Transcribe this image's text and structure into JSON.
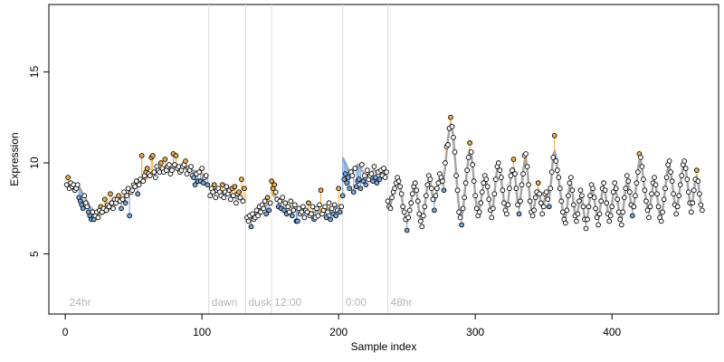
{
  "chart_data": {
    "type": "scatter",
    "xlabel": "Sample index",
    "ylabel": "Expression",
    "xlim": [
      -12,
      478
    ],
    "ylim": [
      1.7,
      18.7
    ],
    "x_ticks": [
      0,
      100,
      200,
      300,
      400
    ],
    "y_ticks": [
      5,
      10,
      15
    ],
    "grid": false,
    "colors": {
      "fit_line": "#a6a6a6",
      "residual_above": "#f4a425",
      "residual_below": "#6f9fd8",
      "point_above": "#f5b04c",
      "point_below": "#7ba7dc",
      "point_neutral": "#333333",
      "marker_line": "#dcdcdc",
      "marker_text": "#b5b5b5"
    },
    "markers": [
      {
        "x": 1,
        "label": "24hr"
      },
      {
        "x": 105,
        "label": "dawn"
      },
      {
        "x": 132,
        "label": "dusk"
      },
      {
        "x": 151,
        "label": "12:00"
      },
      {
        "x": 203,
        "label": "0:00"
      },
      {
        "x": 236,
        "label": "48hr"
      }
    ],
    "segments": [
      {
        "from": 1,
        "to": 104,
        "fit": [
          [
            1,
            8.8
          ],
          [
            10,
            8.7
          ],
          [
            18,
            7.6
          ],
          [
            24,
            7.1
          ],
          [
            30,
            7.3
          ],
          [
            40,
            7.9
          ],
          [
            50,
            8.6
          ],
          [
            60,
            9.2
          ],
          [
            70,
            9.6
          ],
          [
            80,
            9.8
          ],
          [
            90,
            9.7
          ],
          [
            100,
            9.4
          ],
          [
            104,
            9.2
          ]
        ]
      },
      {
        "from": 105,
        "to": 131,
        "fit": [
          [
            105,
            8.3
          ],
          [
            112,
            8.5
          ],
          [
            118,
            8.4
          ],
          [
            124,
            8.1
          ],
          [
            131,
            7.9
          ]
        ]
      },
      {
        "from": 132,
        "to": 150,
        "fit": [
          [
            132,
            7.2
          ],
          [
            136,
            7.0
          ],
          [
            140,
            7.3
          ],
          [
            145,
            7.6
          ],
          [
            150,
            7.8
          ]
        ]
      },
      {
        "from": 151,
        "to": 202,
        "fit": [
          [
            151,
            8.3
          ],
          [
            160,
            7.8
          ],
          [
            170,
            7.4
          ],
          [
            180,
            7.3
          ],
          [
            190,
            7.4
          ],
          [
            202,
            7.7
          ]
        ]
      },
      {
        "from": 203,
        "to": 235,
        "fit": [
          [
            203,
            10.3
          ],
          [
            208,
            9.5
          ],
          [
            214,
            9.9
          ],
          [
            220,
            9.3
          ],
          [
            226,
            9.6
          ],
          [
            235,
            9.4
          ]
        ]
      },
      {
        "from": 236,
        "to": 466,
        "fit": "oscillating"
      }
    ],
    "points_note": "Sample values 0–466; y range approx 6.3–12.5"
  },
  "points": [
    [
      1,
      8.8
    ],
    [
      2,
      9.2
    ],
    [
      3,
      8.6
    ],
    [
      4,
      8.9
    ],
    [
      5,
      8.7
    ],
    [
      6,
      8.8
    ],
    [
      7,
      8.5
    ],
    [
      8,
      8.6
    ],
    [
      9,
      8.8
    ],
    [
      10,
      8.1
    ],
    [
      11,
      7.9
    ],
    [
      12,
      7.7
    ],
    [
      13,
      7.5
    ],
    [
      14,
      8.2
    ],
    [
      15,
      7.8
    ],
    [
      16,
      7.6
    ],
    [
      17,
      7.3
    ],
    [
      18,
      7.1
    ],
    [
      19,
      6.9
    ],
    [
      20,
      7.3
    ],
    [
      21,
      6.9
    ],
    [
      22,
      7.1
    ],
    [
      23,
      7.3
    ],
    [
      24,
      7.0
    ],
    [
      25,
      7.4
    ],
    [
      26,
      7.6
    ],
    [
      27,
      7.3
    ],
    [
      28,
      7.5
    ],
    [
      29,
      8.0
    ],
    [
      30,
      7.4
    ],
    [
      31,
      7.7
    ],
    [
      32,
      7.6
    ],
    [
      33,
      8.3
    ],
    [
      34,
      7.8
    ],
    [
      35,
      7.5
    ],
    [
      36,
      8.0
    ],
    [
      37,
      7.8
    ],
    [
      38,
      8.0
    ],
    [
      39,
      8.2
    ],
    [
      40,
      7.9
    ],
    [
      41,
      7.5
    ],
    [
      42,
      8.0
    ],
    [
      43,
      8.4
    ],
    [
      44,
      7.8
    ],
    [
      45,
      8.2
    ],
    [
      46,
      8.6
    ],
    [
      47,
      7.1
    ],
    [
      48,
      8.4
    ],
    [
      49,
      8.5
    ],
    [
      50,
      8.8
    ],
    [
      51,
      8.7
    ],
    [
      52,
      9.0
    ],
    [
      53,
      8.3
    ],
    [
      54,
      8.8
    ],
    [
      55,
      9.1
    ],
    [
      56,
      10.4
    ],
    [
      57,
      9.0
    ],
    [
      58,
      9.3
    ],
    [
      59,
      9.5
    ],
    [
      60,
      9.7
    ],
    [
      61,
      9.4
    ],
    [
      62,
      9.3
    ],
    [
      63,
      10.3
    ],
    [
      64,
      10.4
    ],
    [
      65,
      9.5
    ],
    [
      66,
      9.2
    ],
    [
      67,
      9.8
    ],
    [
      68,
      9.6
    ],
    [
      69,
      9.5
    ],
    [
      70,
      10.0
    ],
    [
      71,
      9.7
    ],
    [
      72,
      9.5
    ],
    [
      73,
      10.2
    ],
    [
      74,
      9.6
    ],
    [
      75,
      9.8
    ],
    [
      76,
      9.9
    ],
    [
      77,
      9.4
    ],
    [
      78,
      9.6
    ],
    [
      79,
      10.5
    ],
    [
      80,
      9.9
    ],
    [
      81,
      10.4
    ],
    [
      82,
      9.7
    ],
    [
      83,
      9.8
    ],
    [
      84,
      9.5
    ],
    [
      85,
      9.6
    ],
    [
      86,
      9.8
    ],
    [
      87,
      9.9
    ],
    [
      88,
      10.1
    ],
    [
      89,
      9.4
    ],
    [
      90,
      9.7
    ],
    [
      91,
      9.6
    ],
    [
      92,
      9.8
    ],
    [
      93,
      9.3
    ],
    [
      94,
      9.2
    ],
    [
      95,
      8.8
    ],
    [
      96,
      9.4
    ],
    [
      97,
      9.0
    ],
    [
      98,
      9.5
    ],
    [
      99,
      9.0
    ],
    [
      100,
      9.7
    ],
    [
      101,
      8.9
    ],
    [
      102,
      9.2
    ],
    [
      103,
      9.3
    ],
    [
      104,
      8.8
    ],
    [
      106,
      8.2
    ],
    [
      107,
      8.6
    ],
    [
      108,
      8.4
    ],
    [
      109,
      8.8
    ],
    [
      110,
      8.1
    ],
    [
      111,
      8.5
    ],
    [
      112,
      8.6
    ],
    [
      113,
      8.4
    ],
    [
      114,
      8.2
    ],
    [
      115,
      8.8
    ],
    [
      116,
      8.1
    ],
    [
      117,
      8.4
    ],
    [
      118,
      8.7
    ],
    [
      119,
      8.3
    ],
    [
      120,
      8.5
    ],
    [
      121,
      8.0
    ],
    [
      122,
      8.6
    ],
    [
      123,
      8.2
    ],
    [
      124,
      8.7
    ],
    [
      125,
      7.8
    ],
    [
      126,
      8.3
    ],
    [
      127,
      8.4
    ],
    [
      128,
      8.1
    ],
    [
      129,
      9.1
    ],
    [
      130,
      7.9
    ],
    [
      131,
      8.6
    ],
    [
      133,
      7.0
    ],
    [
      134,
      6.8
    ],
    [
      135,
      7.1
    ],
    [
      136,
      6.5
    ],
    [
      137,
      7.2
    ],
    [
      138,
      6.9
    ],
    [
      139,
      7.0
    ],
    [
      140,
      7.4
    ],
    [
      141,
      7.1
    ],
    [
      142,
      7.6
    ],
    [
      143,
      7.3
    ],
    [
      144,
      7.7
    ],
    [
      145,
      7.5
    ],
    [
      146,
      7.9
    ],
    [
      147,
      7.2
    ],
    [
      148,
      8.1
    ],
    [
      149,
      7.4
    ],
    [
      150,
      7.8
    ],
    [
      151,
      9.0
    ],
    [
      152,
      8.6
    ],
    [
      153,
      8.8
    ],
    [
      154,
      8.4
    ],
    [
      155,
      8.0
    ],
    [
      156,
      7.6
    ],
    [
      157,
      7.9
    ],
    [
      158,
      7.5
    ],
    [
      159,
      8.1
    ],
    [
      160,
      7.4
    ],
    [
      161,
      7.8
    ],
    [
      162,
      7.2
    ],
    [
      163,
      7.6
    ],
    [
      164,
      7.3
    ],
    [
      165,
      7.9
    ],
    [
      166,
      7.1
    ],
    [
      167,
      7.4
    ],
    [
      168,
      7.7
    ],
    [
      169,
      6.8
    ],
    [
      170,
      6.8
    ],
    [
      171,
      7.5
    ],
    [
      172,
      7.2
    ],
    [
      173,
      7.3
    ],
    [
      174,
      7.6
    ],
    [
      175,
      7.0
    ],
    [
      176,
      7.4
    ],
    [
      177,
      7.3
    ],
    [
      178,
      7.8
    ],
    [
      179,
      7.1
    ],
    [
      180,
      7.2
    ],
    [
      181,
      7.6
    ],
    [
      182,
      6.9
    ],
    [
      183,
      7.0
    ],
    [
      184,
      7.5
    ],
    [
      185,
      7.1
    ],
    [
      186,
      7.7
    ],
    [
      187,
      8.5
    ],
    [
      188,
      7.2
    ],
    [
      189,
      7.4
    ],
    [
      190,
      7.6
    ],
    [
      191,
      7.0
    ],
    [
      192,
      7.3
    ],
    [
      193,
      7.8
    ],
    [
      194,
      6.9
    ],
    [
      195,
      7.5
    ],
    [
      196,
      7.2
    ],
    [
      197,
      7.7
    ],
    [
      198,
      7.1
    ],
    [
      199,
      7.4
    ],
    [
      200,
      8.6
    ],
    [
      201,
      7.3
    ],
    [
      202,
      7.6
    ],
    [
      203,
      8.2
    ],
    [
      204,
      9.1
    ],
    [
      205,
      9.4
    ],
    [
      206,
      8.9
    ],
    [
      207,
      9.2
    ],
    [
      208,
      8.6
    ],
    [
      209,
      9.5
    ],
    [
      210,
      9.3
    ],
    [
      211,
      8.4
    ],
    [
      212,
      9.7
    ],
    [
      213,
      8.7
    ],
    [
      214,
      9.0
    ],
    [
      215,
      9.1
    ],
    [
      216,
      8.6
    ],
    [
      217,
      9.9
    ],
    [
      218,
      9.0
    ],
    [
      219,
      9.3
    ],
    [
      220,
      8.8
    ],
    [
      221,
      9.6
    ],
    [
      222,
      9.1
    ],
    [
      223,
      9.3
    ],
    [
      224,
      9.4
    ],
    [
      225,
      9.0
    ],
    [
      226,
      9.8
    ],
    [
      227,
      9.2
    ],
    [
      228,
      8.9
    ],
    [
      229,
      9.5
    ],
    [
      230,
      9.1
    ],
    [
      231,
      9.6
    ],
    [
      232,
      9.3
    ],
    [
      233,
      9.7
    ],
    [
      234,
      9.2
    ],
    [
      235,
      9.5
    ],
    [
      236,
      7.9
    ],
    [
      237,
      7.6
    ],
    [
      238,
      7.5
    ],
    [
      239,
      8.1
    ],
    [
      240,
      8.4
    ],
    [
      241,
      8.6
    ],
    [
      242,
      8.9
    ],
    [
      243,
      9.2
    ],
    [
      244,
      9.0
    ],
    [
      245,
      8.7
    ],
    [
      246,
      8.3
    ],
    [
      247,
      7.6
    ],
    [
      248,
      7.3
    ],
    [
      249,
      6.9
    ],
    [
      250,
      6.3
    ],
    [
      251,
      7.0
    ],
    [
      252,
      7.4
    ],
    [
      253,
      7.8
    ],
    [
      254,
      8.3
    ],
    [
      255,
      8.7
    ],
    [
      256,
      8.9
    ],
    [
      257,
      8.5
    ],
    [
      258,
      7.9
    ],
    [
      259,
      7.2
    ],
    [
      260,
      6.8
    ],
    [
      261,
      6.5
    ],
    [
      262,
      7.1
    ],
    [
      263,
      7.6
    ],
    [
      264,
      8.2
    ],
    [
      265,
      8.8
    ],
    [
      266,
      9.3
    ],
    [
      267,
      9.1
    ],
    [
      268,
      8.6
    ],
    [
      269,
      8.0
    ],
    [
      270,
      7.4
    ],
    [
      271,
      8.2
    ],
    [
      272,
      8.6
    ],
    [
      273,
      8.9
    ],
    [
      274,
      9.4
    ],
    [
      275,
      9.2
    ],
    [
      276,
      9.0
    ],
    [
      277,
      8.5
    ],
    [
      278,
      10.0
    ],
    [
      279,
      10.9
    ],
    [
      280,
      11.0
    ],
    [
      281,
      11.9
    ],
    [
      282,
      12.5
    ],
    [
      283,
      12.0
    ],
    [
      284,
      11.4
    ],
    [
      285,
      10.6
    ],
    [
      286,
      9.3
    ],
    [
      287,
      8.5
    ],
    [
      288,
      7.3
    ],
    [
      289,
      7.0
    ],
    [
      290,
      6.6
    ],
    [
      291,
      7.5
    ],
    [
      292,
      8.1
    ],
    [
      293,
      8.9
    ],
    [
      294,
      9.6
    ],
    [
      295,
      10.3
    ],
    [
      296,
      11.1
    ],
    [
      297,
      10.6
    ],
    [
      298,
      9.9
    ],
    [
      299,
      9.0
    ],
    [
      300,
      8.2
    ],
    [
      301,
      7.5
    ],
    [
      302,
      7.1
    ],
    [
      303,
      7.3
    ],
    [
      304,
      7.8
    ],
    [
      305,
      8.4
    ],
    [
      306,
      8.9
    ],
    [
      307,
      9.3
    ],
    [
      308,
      9.1
    ],
    [
      309,
      8.7
    ],
    [
      310,
      8.0
    ],
    [
      311,
      7.4
    ],
    [
      312,
      7.0
    ],
    [
      313,
      7.5
    ],
    [
      314,
      8.3
    ],
    [
      315,
      9.1
    ],
    [
      316,
      9.8
    ],
    [
      317,
      10.0
    ],
    [
      318,
      9.6
    ],
    [
      319,
      9.2
    ],
    [
      320,
      8.5
    ],
    [
      321,
      7.8
    ],
    [
      322,
      7.4
    ],
    [
      323,
      7.2
    ],
    [
      324,
      7.7
    ],
    [
      325,
      8.6
    ],
    [
      326,
      9.3
    ],
    [
      327,
      9.6
    ],
    [
      328,
      10.2
    ],
    [
      329,
      9.4
    ],
    [
      330,
      8.6
    ],
    [
      331,
      7.7
    ],
    [
      332,
      7.2
    ],
    [
      333,
      7.9
    ],
    [
      334,
      8.8
    ],
    [
      335,
      9.4
    ],
    [
      336,
      10.4
    ],
    [
      337,
      10.5
    ],
    [
      338,
      9.8
    ],
    [
      339,
      8.8
    ],
    [
      340,
      7.9
    ],
    [
      341,
      7.3
    ],
    [
      342,
      7.1
    ],
    [
      343,
      7.4
    ],
    [
      344,
      8.1
    ],
    [
      345,
      8.4
    ],
    [
      346,
      8.9
    ],
    [
      347,
      8.3
    ],
    [
      348,
      7.8
    ],
    [
      349,
      7.2
    ],
    [
      350,
      7.6
    ],
    [
      351,
      8.3
    ],
    [
      352,
      8.4
    ],
    [
      353,
      8.0
    ],
    [
      354,
      7.6
    ],
    [
      355,
      8.6
    ],
    [
      356,
      9.5
    ],
    [
      357,
      10.3
    ],
    [
      358,
      11.5
    ],
    [
      359,
      10.1
    ],
    [
      360,
      9.6
    ],
    [
      361,
      9.2
    ],
    [
      362,
      8.6
    ],
    [
      363,
      7.9
    ],
    [
      364,
      7.3
    ],
    [
      365,
      6.9
    ],
    [
      366,
      6.7
    ],
    [
      367,
      7.4
    ],
    [
      368,
      8.2
    ],
    [
      369,
      8.9
    ],
    [
      370,
      9.2
    ],
    [
      371,
      8.5
    ],
    [
      372,
      7.7
    ],
    [
      373,
      7.1
    ],
    [
      374,
      6.8
    ],
    [
      375,
      7.2
    ],
    [
      376,
      7.9
    ],
    [
      377,
      8.5
    ],
    [
      378,
      8.2
    ],
    [
      379,
      7.6
    ],
    [
      380,
      6.9
    ],
    [
      381,
      6.4
    ],
    [
      382,
      6.9
    ],
    [
      383,
      7.6
    ],
    [
      384,
      8.2
    ],
    [
      385,
      8.8
    ],
    [
      386,
      8.6
    ],
    [
      387,
      8.1
    ],
    [
      388,
      7.5
    ],
    [
      389,
      7.0
    ],
    [
      390,
      6.6
    ],
    [
      391,
      7.2
    ],
    [
      392,
      7.9
    ],
    [
      393,
      8.6
    ],
    [
      394,
      8.9
    ],
    [
      395,
      8.5
    ],
    [
      396,
      7.8
    ],
    [
      397,
      7.2
    ],
    [
      398,
      6.8
    ],
    [
      399,
      7.1
    ],
    [
      400,
      7.6
    ],
    [
      401,
      8.4
    ],
    [
      402,
      8.9
    ],
    [
      403,
      8.6
    ],
    [
      404,
      8.0
    ],
    [
      405,
      7.3
    ],
    [
      406,
      6.9
    ],
    [
      407,
      6.6
    ],
    [
      408,
      7.3
    ],
    [
      409,
      8.1
    ],
    [
      410,
      8.6
    ],
    [
      411,
      9.3
    ],
    [
      412,
      9.0
    ],
    [
      413,
      8.4
    ],
    [
      414,
      7.7
    ],
    [
      415,
      7.1
    ],
    [
      416,
      7.6
    ],
    [
      417,
      8.2
    ],
    [
      418,
      8.9
    ],
    [
      419,
      9.5
    ],
    [
      420,
      10.5
    ],
    [
      421,
      10.3
    ],
    [
      422,
      9.8
    ],
    [
      423,
      9.1
    ],
    [
      424,
      8.5
    ],
    [
      425,
      7.9
    ],
    [
      426,
      7.4
    ],
    [
      427,
      7.0
    ],
    [
      428,
      7.6
    ],
    [
      429,
      8.3
    ],
    [
      430,
      8.9
    ],
    [
      431,
      9.2
    ],
    [
      432,
      8.8
    ],
    [
      433,
      8.3
    ],
    [
      434,
      7.6
    ],
    [
      435,
      7.0
    ],
    [
      436,
      6.8
    ],
    [
      437,
      7.3
    ],
    [
      438,
      8.0
    ],
    [
      439,
      8.6
    ],
    [
      440,
      9.2
    ],
    [
      441,
      9.9
    ],
    [
      442,
      10.1
    ],
    [
      443,
      9.5
    ],
    [
      444,
      9.0
    ],
    [
      445,
      8.3
    ],
    [
      446,
      7.7
    ],
    [
      447,
      7.2
    ],
    [
      448,
      7.6
    ],
    [
      449,
      8.2
    ],
    [
      450,
      8.8
    ],
    [
      451,
      9.3
    ],
    [
      452,
      9.9
    ],
    [
      453,
      10.1
    ],
    [
      454,
      9.7
    ],
    [
      455,
      9.1
    ],
    [
      456,
      8.4
    ],
    [
      457,
      7.8
    ],
    [
      458,
      7.3
    ],
    [
      459,
      7.8
    ],
    [
      460,
      8.5
    ],
    [
      461,
      9.1
    ],
    [
      462,
      9.6
    ],
    [
      463,
      9.0
    ],
    [
      464,
      8.3
    ],
    [
      465,
      7.7
    ],
    [
      466,
      7.4
    ]
  ]
}
